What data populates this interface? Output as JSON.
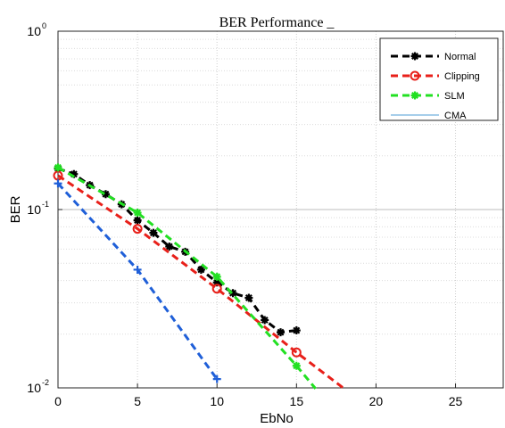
{
  "chart_data": {
    "type": "line",
    "title": "BER Performance _",
    "xlabel": "EbNo",
    "ylabel": "BER",
    "xlim": [
      0,
      28
    ],
    "ylim": [
      0.01,
      1
    ],
    "yscale": "log",
    "xticks": [
      0,
      5,
      10,
      15,
      20,
      25
    ],
    "yticks": [
      {
        "value": 1,
        "base": "10",
        "exp": "0"
      },
      {
        "value": 0.1,
        "base": "10",
        "exp": "-1"
      },
      {
        "value": 0.01,
        "base": "10",
        "exp": "-2"
      }
    ],
    "grid": true,
    "legend_position": "top-right",
    "series": [
      {
        "name": "Normal",
        "color": "#000000",
        "marker": "asterisk",
        "x": [
          0,
          1,
          2,
          3,
          4,
          5,
          6,
          7,
          8,
          9,
          10,
          11,
          12,
          13,
          14,
          15
        ],
        "y": [
          0.17,
          0.158,
          0.137,
          0.122,
          0.107,
          0.087,
          0.074,
          0.062,
          0.058,
          0.046,
          0.039,
          0.034,
          0.032,
          0.024,
          0.0205,
          0.021
        ]
      },
      {
        "name": "Clipping",
        "color": "#e8201a",
        "marker": "circle",
        "x": [
          0,
          5,
          10,
          15,
          18
        ],
        "y": [
          0.155,
          0.078,
          0.036,
          0.0158,
          0.0099
        ]
      },
      {
        "name": "SLM",
        "color": "#22e022",
        "marker": "asterisk",
        "x": [
          0,
          5,
          10,
          15,
          16.2
        ],
        "y": [
          0.172,
          0.096,
          0.042,
          0.0133,
          0.0099
        ]
      },
      {
        "name": "CMA",
        "color": "#1f5fd8",
        "marker": "plus",
        "legend_color": "#4d9ed6",
        "x": [
          0,
          5,
          10
        ],
        "y": [
          0.14,
          0.046,
          0.0112
        ]
      }
    ]
  }
}
